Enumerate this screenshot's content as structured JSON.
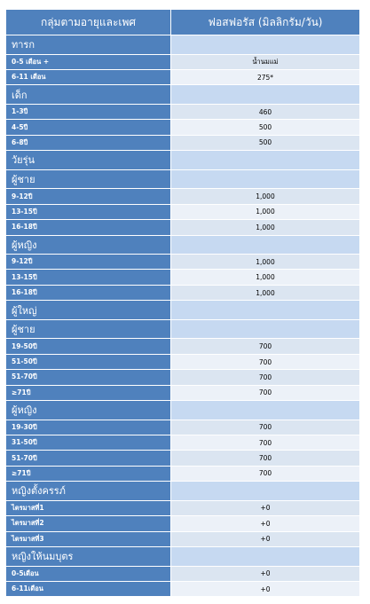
{
  "table": {
    "header": [
      "กลุ่มตามอายุและเพศ",
      "ฟอสฟอรัส (มิลลิกรัม/วัน)"
    ],
    "rows": [
      {
        "label": "ทารก"
      },
      {
        "label": "0-5 เดือน +",
        "value": "น้ำนมแม่"
      },
      {
        "label": "6-11 เดือน",
        "value": "275*"
      },
      {
        "label": "เด็ก"
      },
      {
        "label": "1-3ปี",
        "value": "460"
      },
      {
        "label": "4-5ปี",
        "value": "500"
      },
      {
        "label": "6-8ปี",
        "value": "500"
      },
      {
        "label": "วัยรุ่น"
      },
      {
        "label": "ผู้ชาย"
      },
      {
        "label": "9-12ปี",
        "value": "1,000"
      },
      {
        "label": "13-15ปี",
        "value": "1,000"
      },
      {
        "label": "16-18ปี",
        "value": "1,000"
      },
      {
        "label": "ผู้หญิง"
      },
      {
        "label": "9-12ปี",
        "value": "1,000"
      },
      {
        "label": "13-15ปี",
        "value": "1,000"
      },
      {
        "label": "16-18ปี",
        "value": "1,000"
      },
      {
        "label": "ผู้ใหญ่"
      },
      {
        "label": "ผู้ชาย"
      },
      {
        "label": "19-50ปี",
        "value": "700"
      },
      {
        "label": "51-50ปี",
        "value": "700"
      },
      {
        "label": "51-70ปี",
        "value": "700"
      },
      {
        "label": "≥71ปี",
        "value": "700"
      },
      {
        "label": "ผู้หญิง"
      },
      {
        "label": "19-30ปี",
        "value": "700"
      },
      {
        "label": "31-50ปี",
        "value": "700"
      },
      {
        "label": "51-70ปี",
        "value": "700"
      },
      {
        "label": "≥71ปี",
        "value": "700"
      },
      {
        "label": "หญิงตั้งครรภ์"
      },
      {
        "label": "ไตรมาสที่1",
        "value": "+0"
      },
      {
        "label": "ไตรมาสที่2",
        "value": "+0"
      },
      {
        "label": "ไตรมาสที่3",
        "value": "+0"
      },
      {
        "label": "หญิงให้นมบุตร"
      },
      {
        "label": "0-5เดือน",
        "value": "+0"
      },
      {
        "label": "6-11เดือน",
        "value": "+0"
      }
    ]
  }
}
